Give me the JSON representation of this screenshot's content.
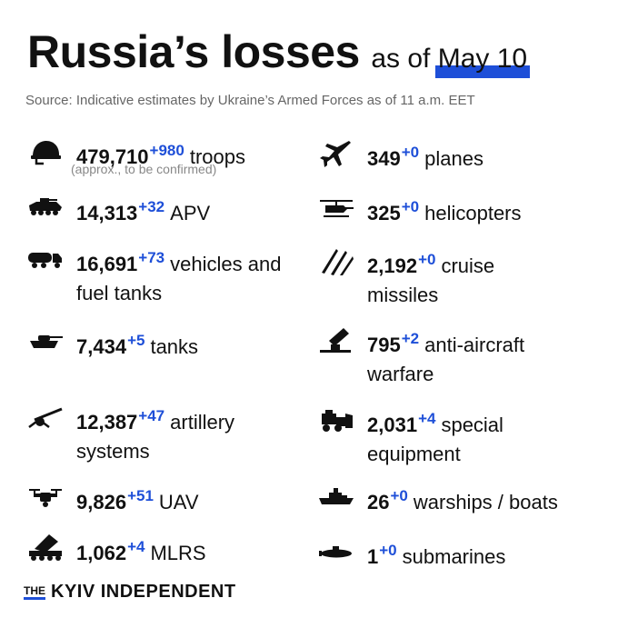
{
  "header": {
    "title": "Russia’s losses",
    "subtitle_prefix": "as of",
    "date": "May 10",
    "source": "Source: Indicative estimates by Ukraine’s Armed Forces as of 11 a.m. EET"
  },
  "left": [
    {
      "icon": "helmet-icon",
      "value": "479,710",
      "delta": "+980",
      "label": "troops",
      "note": "(approx., to be confirmed)"
    },
    {
      "icon": "apv-icon",
      "value": "14,313",
      "delta": "+32",
      "label": "APV"
    },
    {
      "icon": "fuel-truck-icon",
      "value": "16,691",
      "delta": "+73",
      "label": "vehicles and",
      "label2": "fuel tanks"
    },
    {
      "icon": "tank-icon",
      "value": "7,434",
      "delta": "+5",
      "label": "tanks"
    },
    {
      "icon": "artillery-icon",
      "value": "12,387",
      "delta": "+47",
      "label": "artillery",
      "label2": "systems"
    },
    {
      "icon": "drone-icon",
      "value": "9,826",
      "delta": "+51",
      "label": "UAV"
    },
    {
      "icon": "mlrs-icon",
      "value": "1,062",
      "delta": "+4",
      "label": "MLRS"
    }
  ],
  "right": [
    {
      "icon": "plane-icon",
      "value": "349",
      "delta": "+0",
      "label": "planes"
    },
    {
      "icon": "helicopter-icon",
      "value": "325",
      "delta": "+0",
      "label": "helicopters"
    },
    {
      "icon": "missile-icon",
      "value": "2,192",
      "delta": "+0",
      "label": "cruise",
      "label2": "missiles"
    },
    {
      "icon": "anti-aircraft-icon",
      "value": "795",
      "delta": "+2",
      "label": "anti-aircraft",
      "label2": "warfare"
    },
    {
      "icon": "bulldozer-icon",
      "value": "2,031",
      "delta": "+4",
      "label": "special",
      "label2": "equipment"
    },
    {
      "icon": "warship-icon",
      "value": "26",
      "delta": "+0",
      "label": "warships / boats"
    },
    {
      "icon": "submarine-icon",
      "value": "1",
      "delta": "+0",
      "label": "submarines"
    }
  ],
  "footer": {
    "logo_the": "THE",
    "logo_name": "KYIV INDEPENDENT"
  },
  "colors": {
    "accent": "#1e4fd8",
    "text": "#111111",
    "muted": "#666666"
  }
}
